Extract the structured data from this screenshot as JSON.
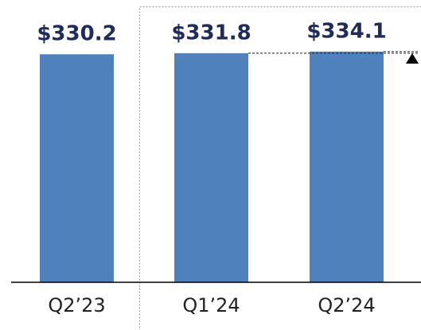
{
  "chart_data": {
    "type": "bar",
    "categories": [
      "Q2’23",
      "Q1’24",
      "Q2’24"
    ],
    "values": [
      330.2,
      331.8,
      334.1
    ],
    "value_labels": [
      "$330.2",
      "$331.8",
      "$334.1"
    ],
    "color": "#4f81bd",
    "ylim": [
      0,
      380
    ]
  }
}
